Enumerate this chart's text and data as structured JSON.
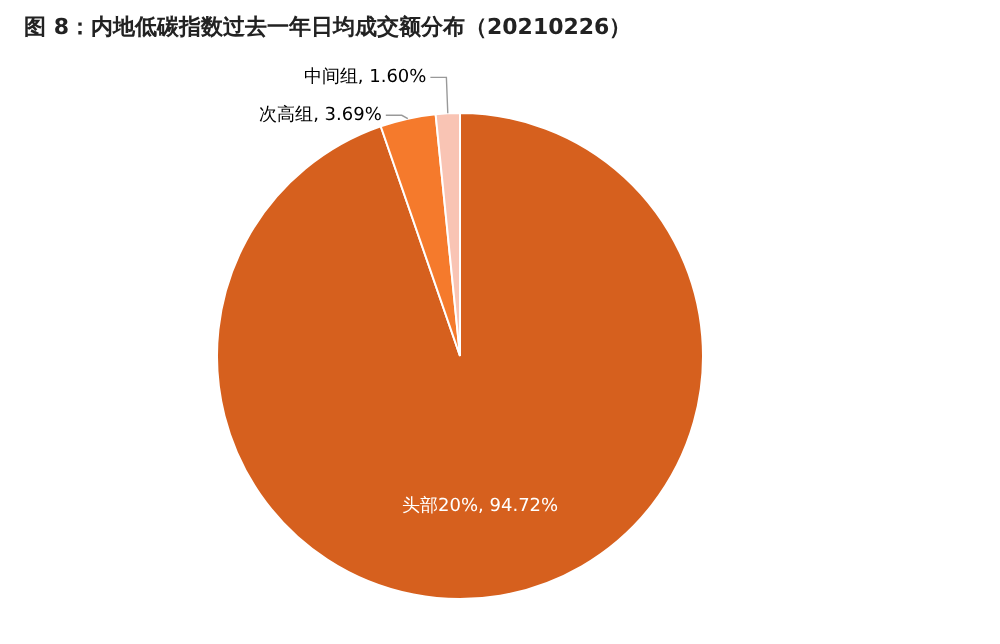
{
  "chart_data": {
    "type": "pie",
    "title": "图 8：内地低碳指数过去一年日均成交额分布（20210226）",
    "categories": [
      "头部20%",
      "次高组",
      "中间组"
    ],
    "values": [
      94.72,
      3.69,
      1.6
    ],
    "value_labels": [
      "94.72%",
      "3.69%",
      "1.60%"
    ],
    "colors": [
      "#d6601e",
      "#f57a2c",
      "#f9c4b4"
    ],
    "legend": false
  }
}
